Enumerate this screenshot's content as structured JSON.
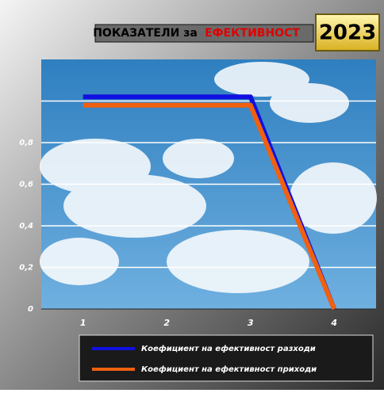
{
  "chart_data": {
    "type": "line",
    "title_parts": [
      "ПОКАЗАТЕЛИ за",
      "ЕФЕКТИВНОСТ"
    ],
    "title_colors": [
      "#000000",
      "#e00000"
    ],
    "badge": "2023",
    "categories": [
      "1",
      "2",
      "3",
      "4"
    ],
    "series": [
      {
        "name": "Коефициент на ефективност разходи",
        "color": "#1010e0",
        "values": [
          1.02,
          1.02,
          1.02,
          0
        ]
      },
      {
        "name": "Коефициент на ефективност приходи",
        "color": "#f06010",
        "values": [
          0.98,
          0.98,
          0.98,
          0
        ]
      }
    ],
    "ylim": [
      0,
      1.2
    ],
    "yticks": [
      0,
      {
        "value": 0.2,
        "label": "0,2"
      },
      {
        "value": 0.4,
        "label": "0,4"
      },
      {
        "value": 0.6,
        "label": "0,6"
      },
      {
        "value": 0.8,
        "label": "0,8"
      }
    ],
    "grid_lines": [
      0.2,
      0.4,
      0.6,
      0.8,
      1
    ],
    "grid": true,
    "legend": "bottom"
  }
}
